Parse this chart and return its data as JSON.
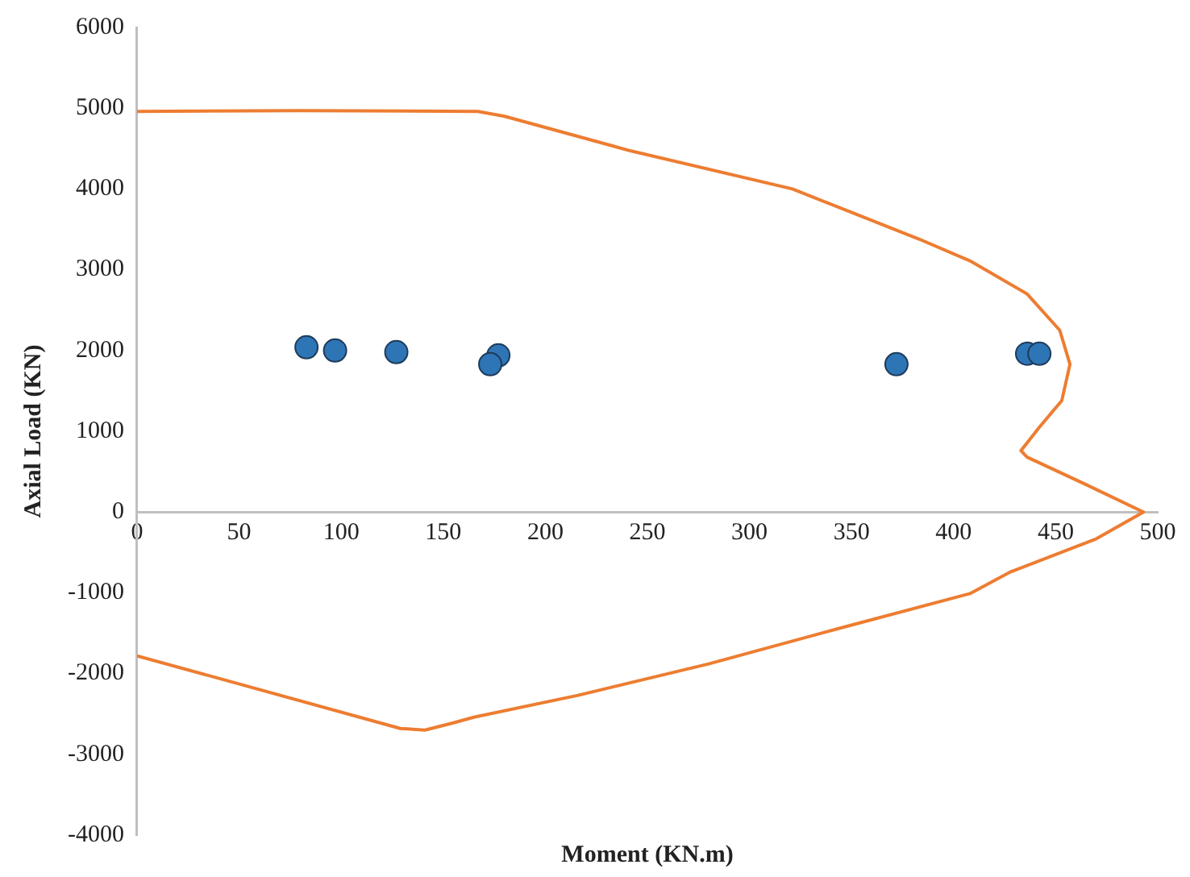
{
  "chart_data": {
    "type": "scatter",
    "xlabel": "Moment (KN.m)",
    "ylabel": "Axial Load (KN)",
    "xlim": [
      0,
      500
    ],
    "xticks": [
      0,
      50,
      100,
      150,
      200,
      250,
      300,
      350,
      400,
      450,
      500
    ],
    "ylim": [
      -4000,
      6000
    ],
    "yticks": [
      -4000,
      -3000,
      -2000,
      -1000,
      0,
      1000,
      2000,
      3000,
      4000,
      5000,
      6000
    ],
    "grid": false,
    "legend": false,
    "series": [
      {
        "type": "line",
        "color": "#ed7d31",
        "marker": "none",
        "x": [
          0,
          80,
          167,
          180,
          242,
          321,
          383,
          408,
          436,
          452,
          457,
          453,
          442,
          433,
          436,
          464,
          493,
          470,
          428,
          408,
          344,
          280,
          216,
          165,
          155,
          141,
          129,
          0
        ],
        "values": [
          4960,
          4970,
          4960,
          4900,
          4470,
          4000,
          3380,
          3110,
          2700,
          2250,
          1830,
          1380,
          1050,
          760,
          680,
          350,
          0,
          -330,
          -740,
          -1010,
          -1440,
          -1880,
          -2270,
          -2540,
          -2610,
          -2700,
          -2680,
          -1780
        ]
      },
      {
        "type": "scatter",
        "color": "#2e75b6",
        "marker": "circle",
        "x": [
          83,
          97,
          127,
          177,
          173,
          372,
          436,
          442
        ],
        "values": [
          2040,
          2000,
          1980,
          1940,
          1830,
          1830,
          1960,
          1960
        ]
      }
    ]
  }
}
